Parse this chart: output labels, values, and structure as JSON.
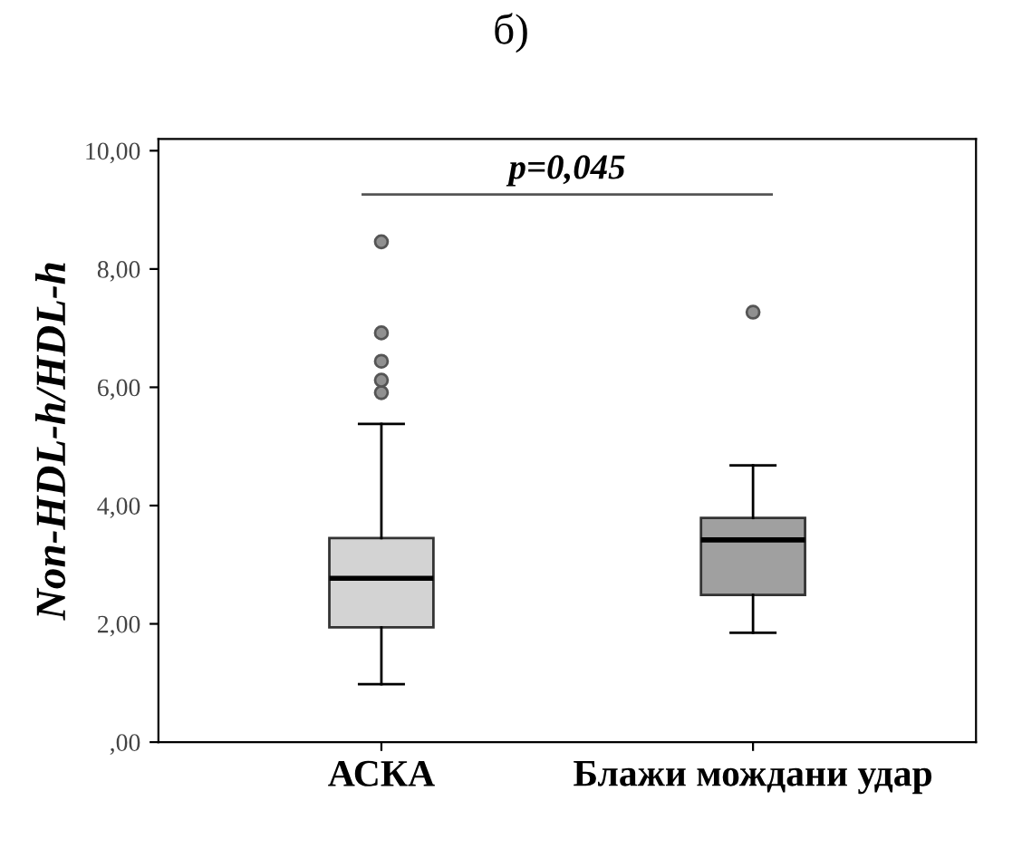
{
  "chart_data": {
    "type": "box",
    "title": "б)",
    "ylabel": "Non-HDL-h/HDL-h",
    "categories": [
      "АСКА",
      "Блажи мождани удар"
    ],
    "colors": [
      "#d3d3d3",
      "#a0a0a0"
    ],
    "boxes": [
      {
        "low": 0.98,
        "q1": 1.94,
        "median": 2.77,
        "q3": 3.45,
        "high": 5.38,
        "outliers": [
          5.91,
          6.12,
          6.44,
          6.92,
          8.46
        ]
      },
      {
        "low": 1.85,
        "q1": 2.49,
        "median": 3.42,
        "q3": 3.79,
        "high": 4.68,
        "outliers": [
          7.27
        ]
      }
    ],
    "ylim": [
      0,
      10.2
    ],
    "yticks": [
      {
        "value": 0,
        "label": ",00"
      },
      {
        "value": 2,
        "label": "2,00"
      },
      {
        "value": 4,
        "label": "4,00"
      },
      {
        "value": 6,
        "label": "6,00"
      },
      {
        "value": 8,
        "label": "8,00"
      },
      {
        "value": 10,
        "label": "10,00"
      }
    ],
    "annotations": [
      "p=0,045"
    ],
    "grid": false
  }
}
